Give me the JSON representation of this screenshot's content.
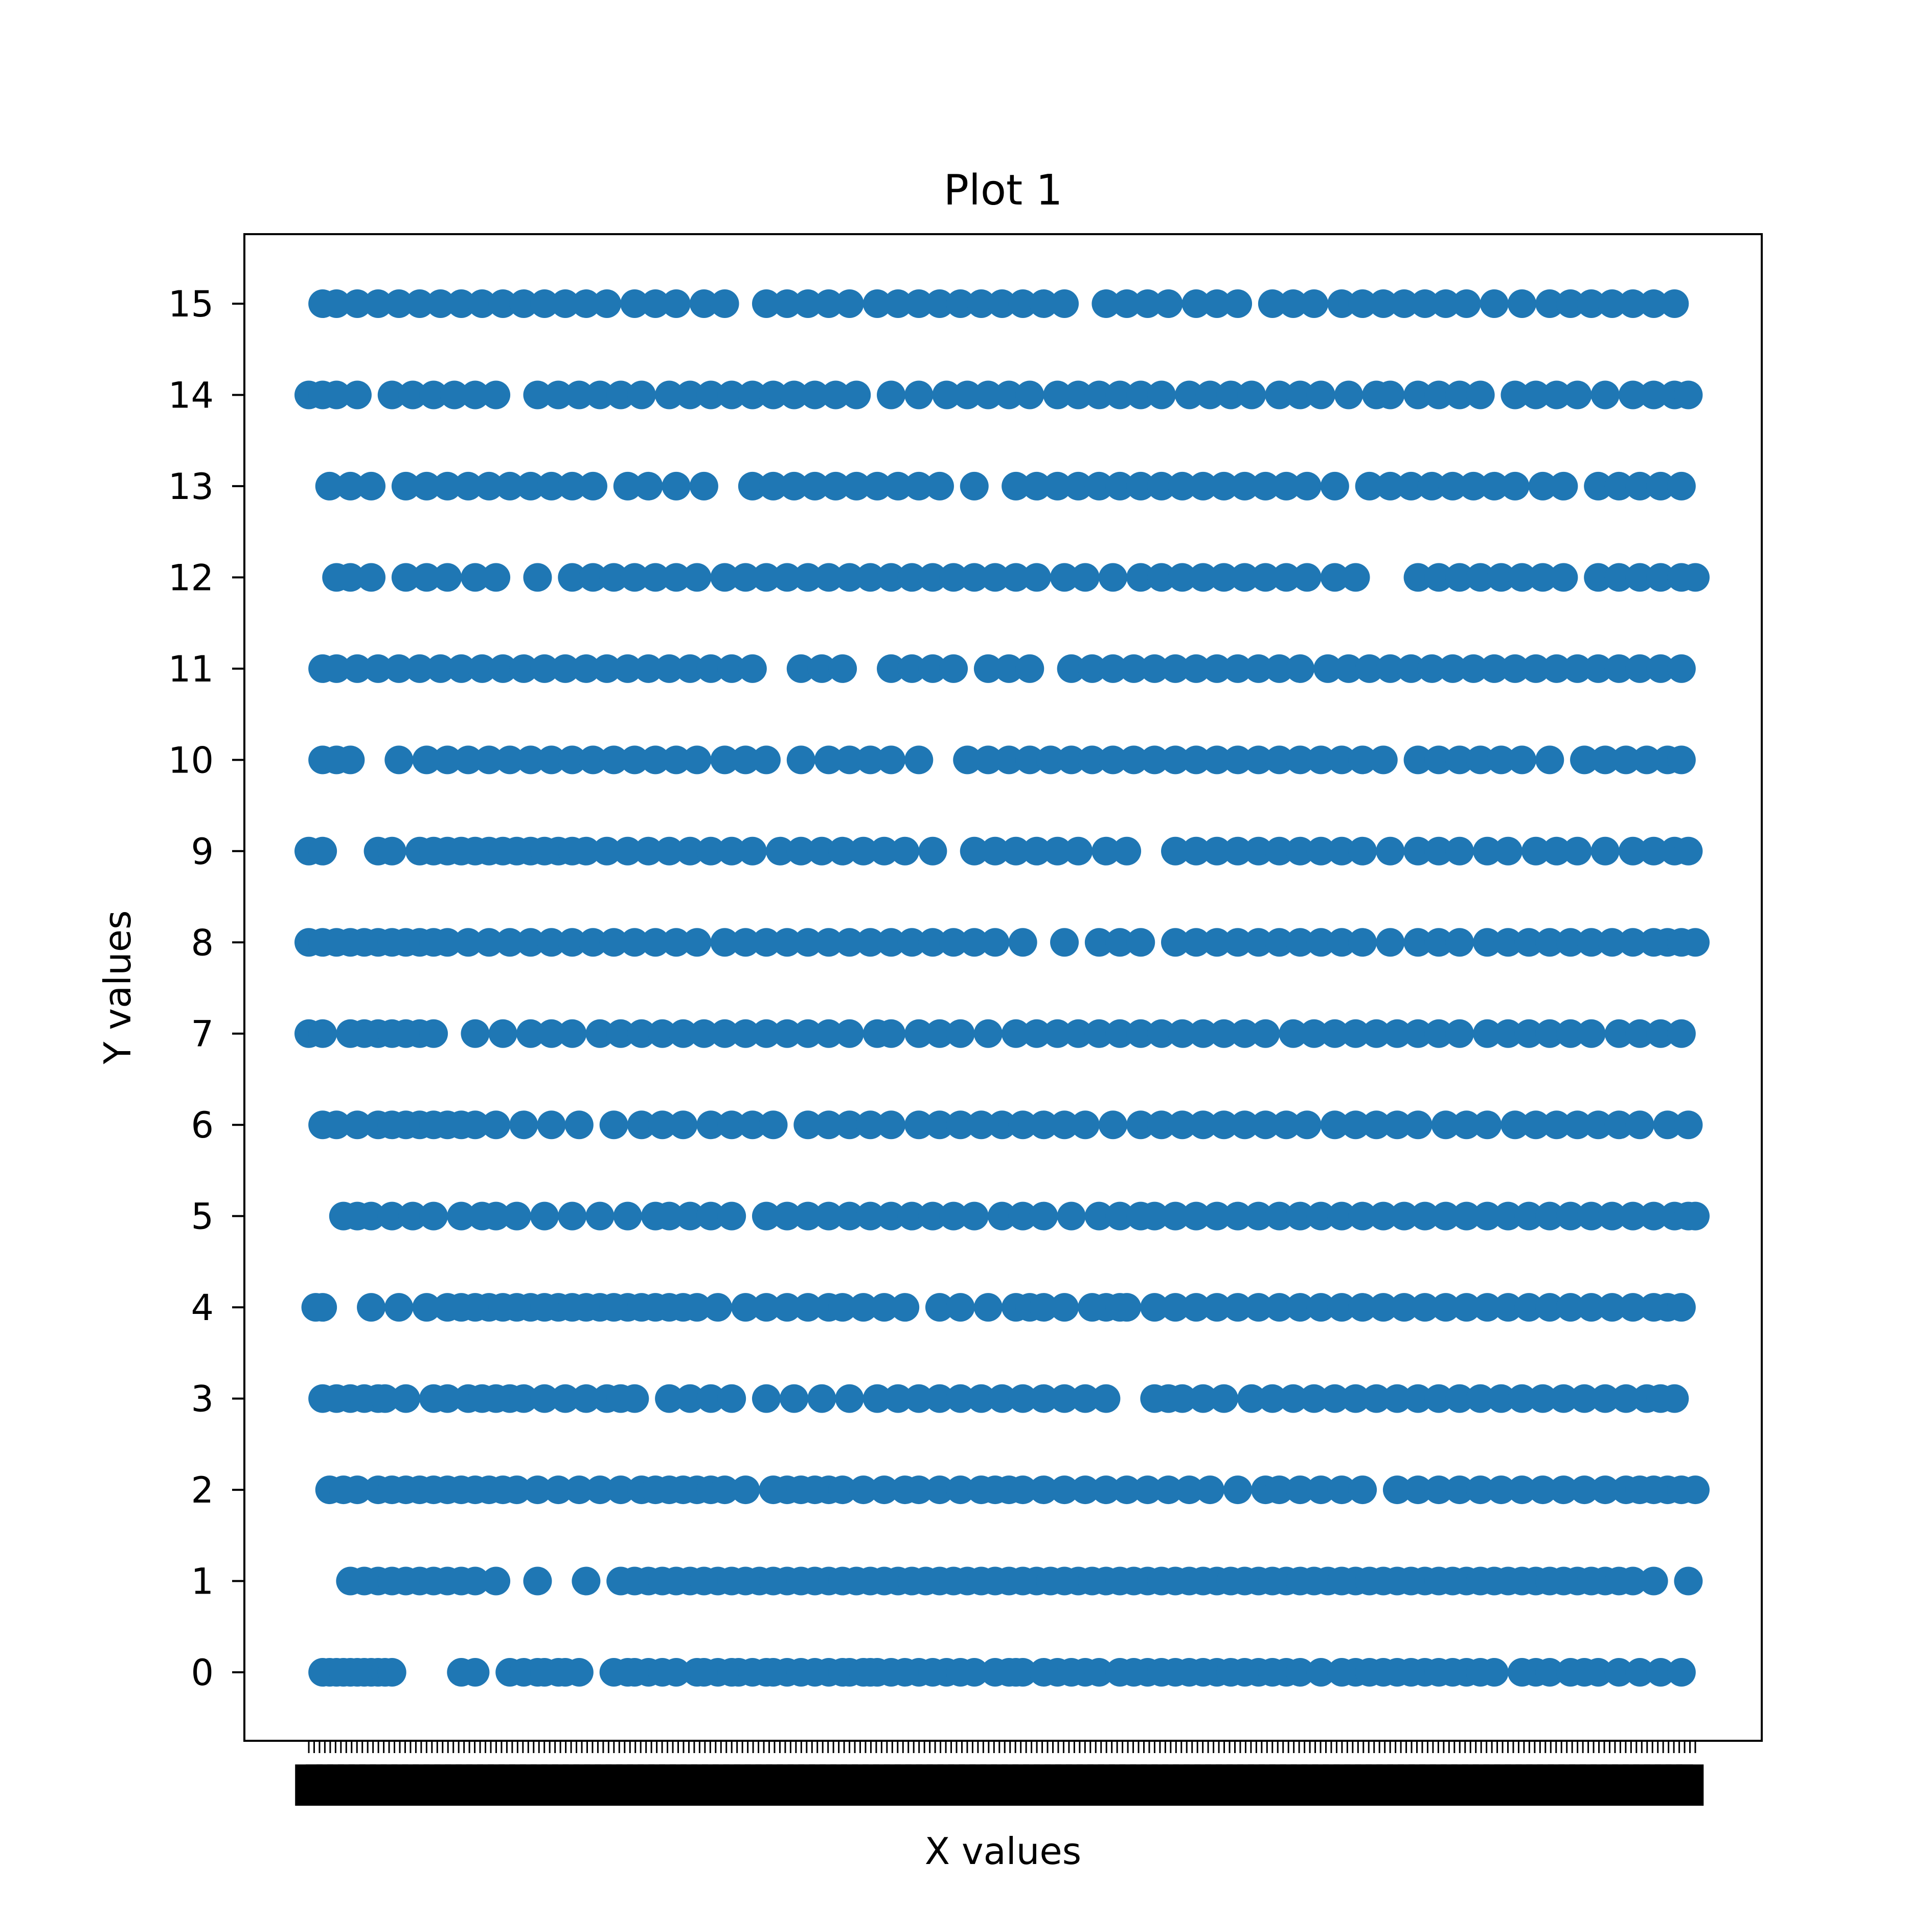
{
  "chart_data": {
    "type": "scatter",
    "title": "Plot 1",
    "xlabel": "X values",
    "ylabel": "Y values",
    "yticks": [
      "0",
      "1",
      "2",
      "3",
      "4",
      "5",
      "6",
      "7",
      "8",
      "9",
      "10",
      "11",
      "12",
      "13",
      "14",
      "15"
    ],
    "xlim": [
      0,
      1
    ],
    "ylim": [
      -0.75,
      15.75
    ],
    "grid": false,
    "x_tick_labels_note": "categorical x tick labels overlap illegibly",
    "marker_color": "#1f77b4",
    "rows": [
      {
        "y": 0,
        "x": [
          0.01,
          0.015,
          0.02,
          0.025,
          0.03,
          0.035,
          0.04,
          0.045,
          0.05,
          0.055,
          0.06,
          0.11,
          0.12,
          0.145,
          0.155,
          0.165,
          0.17,
          0.18,
          0.185,
          0.195,
          0.22,
          0.23,
          0.235,
          0.245,
          0.255,
          0.265,
          0.28,
          0.285,
          0.295,
          0.305,
          0.31,
          0.32,
          0.33,
          0.335,
          0.345,
          0.355,
          0.365,
          0.375,
          0.385,
          0.39,
          0.4,
          0.405,
          0.41,
          0.42,
          0.43,
          0.44,
          0.45,
          0.46,
          0.47,
          0.48,
          0.495,
          0.505,
          0.515,
          0.53,
          0.51,
          0.54,
          0.55,
          0.56,
          0.57,
          0.585,
          0.595,
          0.605,
          0.615,
          0.625,
          0.635,
          0.645,
          0.655,
          0.665,
          0.675,
          0.685,
          0.695,
          0.705,
          0.715,
          0.73,
          0.745,
          0.755,
          0.765,
          0.775,
          0.785,
          0.795,
          0.805,
          0.815,
          0.825,
          0.835,
          0.845,
          0.855,
          0.875,
          0.885,
          0.895,
          0.91,
          0.92,
          0.93,
          0.945,
          0.96,
          0.975,
          0.99
        ]
      },
      {
        "y": 1,
        "x": [
          0.03,
          0.04,
          0.05,
          0.06,
          0.07,
          0.08,
          0.09,
          0.1,
          0.11,
          0.12,
          0.135,
          0.165,
          0.2,
          0.225,
          0.235,
          0.245,
          0.255,
          0.265,
          0.275,
          0.285,
          0.295,
          0.305,
          0.315,
          0.325,
          0.335,
          0.345,
          0.355,
          0.365,
          0.375,
          0.385,
          0.395,
          0.405,
          0.415,
          0.425,
          0.435,
          0.445,
          0.455,
          0.465,
          0.475,
          0.485,
          0.495,
          0.505,
          0.515,
          0.525,
          0.535,
          0.545,
          0.555,
          0.565,
          0.575,
          0.585,
          0.595,
          0.605,
          0.615,
          0.625,
          0.635,
          0.645,
          0.655,
          0.665,
          0.675,
          0.685,
          0.695,
          0.705,
          0.715,
          0.725,
          0.735,
          0.745,
          0.755,
          0.765,
          0.775,
          0.785,
          0.795,
          0.805,
          0.815,
          0.825,
          0.835,
          0.845,
          0.855,
          0.865,
          0.875,
          0.885,
          0.895,
          0.905,
          0.915,
          0.925,
          0.935,
          0.945,
          0.955,
          0.97,
          0.995
        ]
      },
      {
        "y": 2,
        "x": [
          0.015,
          0.025,
          0.035,
          0.05,
          0.06,
          0.07,
          0.08,
          0.09,
          0.1,
          0.11,
          0.12,
          0.13,
          0.14,
          0.15,
          0.165,
          0.18,
          0.195,
          0.21,
          0.225,
          0.24,
          0.25,
          0.26,
          0.27,
          0.28,
          0.29,
          0.3,
          0.315,
          0.335,
          0.345,
          0.355,
          0.365,
          0.375,
          0.385,
          0.4,
          0.415,
          0.43,
          0.44,
          0.455,
          0.47,
          0.485,
          0.495,
          0.505,
          0.515,
          0.53,
          0.545,
          0.56,
          0.575,
          0.59,
          0.605,
          0.62,
          0.635,
          0.65,
          0.67,
          0.69,
          0.7,
          0.715,
          0.73,
          0.745,
          0.76,
          0.785,
          0.8,
          0.815,
          0.83,
          0.845,
          0.86,
          0.875,
          0.89,
          0.905,
          0.92,
          0.935,
          0.95,
          0.96,
          0.97,
          0.98,
          0.99,
          1.0
        ]
      },
      {
        "y": 3,
        "x": [
          0.01,
          0.02,
          0.03,
          0.04,
          0.05,
          0.055,
          0.07,
          0.09,
          0.1,
          0.115,
          0.125,
          0.135,
          0.145,
          0.155,
          0.17,
          0.185,
          0.2,
          0.215,
          0.225,
          0.235,
          0.26,
          0.275,
          0.29,
          0.305,
          0.33,
          0.35,
          0.37,
          0.39,
          0.41,
          0.425,
          0.44,
          0.455,
          0.47,
          0.485,
          0.5,
          0.515,
          0.53,
          0.545,
          0.56,
          0.575,
          0.61,
          0.62,
          0.63,
          0.645,
          0.66,
          0.68,
          0.695,
          0.71,
          0.725,
          0.74,
          0.755,
          0.77,
          0.785,
          0.8,
          0.815,
          0.83,
          0.845,
          0.86,
          0.875,
          0.89,
          0.905,
          0.92,
          0.935,
          0.95,
          0.965,
          0.975,
          0.985
        ]
      },
      {
        "y": 4,
        "x": [
          0.005,
          0.01,
          0.045,
          0.065,
          0.085,
          0.1,
          0.11,
          0.12,
          0.13,
          0.14,
          0.15,
          0.16,
          0.17,
          0.18,
          0.19,
          0.2,
          0.21,
          0.22,
          0.23,
          0.24,
          0.25,
          0.26,
          0.27,
          0.28,
          0.295,
          0.315,
          0.33,
          0.345,
          0.36,
          0.375,
          0.385,
          0.4,
          0.415,
          0.43,
          0.455,
          0.47,
          0.49,
          0.51,
          0.52,
          0.53,
          0.545,
          0.565,
          0.575,
          0.585,
          0.59,
          0.61,
          0.625,
          0.64,
          0.655,
          0.67,
          0.685,
          0.7,
          0.715,
          0.73,
          0.745,
          0.76,
          0.775,
          0.79,
          0.805,
          0.82,
          0.835,
          0.85,
          0.865,
          0.88,
          0.895,
          0.91,
          0.925,
          0.94,
          0.955,
          0.97,
          0.98,
          0.99
        ]
      },
      {
        "y": 5,
        "x": [
          0.025,
          0.035,
          0.045,
          0.06,
          0.075,
          0.09,
          0.11,
          0.125,
          0.135,
          0.15,
          0.17,
          0.19,
          0.21,
          0.23,
          0.25,
          0.26,
          0.275,
          0.29,
          0.305,
          0.33,
          0.345,
          0.36,
          0.375,
          0.39,
          0.405,
          0.42,
          0.435,
          0.45,
          0.465,
          0.48,
          0.5,
          0.515,
          0.53,
          0.55,
          0.57,
          0.585,
          0.6,
          0.61,
          0.625,
          0.64,
          0.655,
          0.67,
          0.685,
          0.7,
          0.715,
          0.73,
          0.745,
          0.76,
          0.775,
          0.79,
          0.805,
          0.82,
          0.835,
          0.85,
          0.865,
          0.88,
          0.895,
          0.91,
          0.925,
          0.94,
          0.955,
          0.97,
          0.985,
          0.995,
          1.0
        ]
      },
      {
        "y": 6,
        "x": [
          0.01,
          0.02,
          0.035,
          0.05,
          0.06,
          0.07,
          0.08,
          0.09,
          0.1,
          0.11,
          0.12,
          0.135,
          0.155,
          0.175,
          0.195,
          0.22,
          0.24,
          0.255,
          0.27,
          0.29,
          0.305,
          0.32,
          0.335,
          0.36,
          0.375,
          0.39,
          0.405,
          0.42,
          0.44,
          0.455,
          0.47,
          0.485,
          0.5,
          0.515,
          0.53,
          0.545,
          0.56,
          0.58,
          0.6,
          0.615,
          0.63,
          0.645,
          0.66,
          0.675,
          0.69,
          0.705,
          0.72,
          0.74,
          0.755,
          0.77,
          0.785,
          0.8,
          0.82,
          0.835,
          0.85,
          0.87,
          0.885,
          0.9,
          0.915,
          0.93,
          0.945,
          0.96,
          0.98,
          0.995
        ]
      },
      {
        "y": 7,
        "x": [
          0.0,
          0.01,
          0.03,
          0.04,
          0.05,
          0.06,
          0.07,
          0.08,
          0.09,
          0.12,
          0.14,
          0.16,
          0.175,
          0.19,
          0.21,
          0.225,
          0.24,
          0.255,
          0.27,
          0.285,
          0.3,
          0.315,
          0.33,
          0.345,
          0.36,
          0.375,
          0.39,
          0.41,
          0.42,
          0.44,
          0.455,
          0.47,
          0.49,
          0.51,
          0.525,
          0.54,
          0.555,
          0.57,
          0.585,
          0.6,
          0.615,
          0.63,
          0.645,
          0.66,
          0.675,
          0.69,
          0.71,
          0.725,
          0.74,
          0.755,
          0.77,
          0.785,
          0.8,
          0.815,
          0.83,
          0.85,
          0.865,
          0.88,
          0.895,
          0.91,
          0.925,
          0.945,
          0.96,
          0.975,
          0.99
        ]
      },
      {
        "y": 8,
        "x": [
          0.0,
          0.01,
          0.02,
          0.03,
          0.04,
          0.05,
          0.06,
          0.07,
          0.08,
          0.09,
          0.1,
          0.115,
          0.13,
          0.145,
          0.16,
          0.175,
          0.19,
          0.205,
          0.22,
          0.235,
          0.25,
          0.265,
          0.28,
          0.3,
          0.315,
          0.33,
          0.345,
          0.36,
          0.375,
          0.39,
          0.405,
          0.42,
          0.435,
          0.45,
          0.465,
          0.48,
          0.495,
          0.515,
          0.545,
          0.57,
          0.585,
          0.6,
          0.625,
          0.64,
          0.655,
          0.67,
          0.685,
          0.7,
          0.715,
          0.73,
          0.745,
          0.76,
          0.78,
          0.8,
          0.815,
          0.83,
          0.85,
          0.865,
          0.88,
          0.895,
          0.91,
          0.925,
          0.94,
          0.955,
          0.97,
          0.98,
          0.99,
          1.0
        ]
      },
      {
        "y": 9,
        "x": [
          0.0,
          0.01,
          0.05,
          0.06,
          0.08,
          0.09,
          0.1,
          0.11,
          0.12,
          0.13,
          0.14,
          0.15,
          0.16,
          0.17,
          0.18,
          0.19,
          0.2,
          0.215,
          0.23,
          0.245,
          0.26,
          0.275,
          0.29,
          0.305,
          0.32,
          0.34,
          0.355,
          0.37,
          0.385,
          0.4,
          0.415,
          0.43,
          0.45,
          0.48,
          0.495,
          0.51,
          0.525,
          0.54,
          0.555,
          0.575,
          0.59,
          0.625,
          0.64,
          0.655,
          0.67,
          0.685,
          0.7,
          0.715,
          0.73,
          0.745,
          0.76,
          0.78,
          0.8,
          0.815,
          0.83,
          0.85,
          0.865,
          0.885,
          0.9,
          0.915,
          0.935,
          0.955,
          0.97,
          0.985,
          0.995
        ]
      },
      {
        "y": 10,
        "x": [
          0.01,
          0.02,
          0.03,
          0.065,
          0.085,
          0.1,
          0.115,
          0.13,
          0.145,
          0.16,
          0.175,
          0.19,
          0.205,
          0.22,
          0.235,
          0.25,
          0.265,
          0.28,
          0.3,
          0.315,
          0.33,
          0.355,
          0.375,
          0.39,
          0.405,
          0.42,
          0.44,
          0.475,
          0.49,
          0.505,
          0.52,
          0.535,
          0.55,
          0.565,
          0.58,
          0.595,
          0.61,
          0.625,
          0.64,
          0.655,
          0.67,
          0.685,
          0.7,
          0.715,
          0.73,
          0.745,
          0.76,
          0.775,
          0.8,
          0.815,
          0.83,
          0.845,
          0.86,
          0.875,
          0.895,
          0.92,
          0.935,
          0.95,
          0.965,
          0.98,
          0.99
        ]
      },
      {
        "y": 11,
        "x": [
          0.01,
          0.02,
          0.035,
          0.05,
          0.065,
          0.08,
          0.095,
          0.11,
          0.125,
          0.14,
          0.155,
          0.17,
          0.185,
          0.2,
          0.215,
          0.23,
          0.245,
          0.26,
          0.275,
          0.29,
          0.305,
          0.32,
          0.355,
          0.37,
          0.385,
          0.42,
          0.435,
          0.45,
          0.465,
          0.49,
          0.505,
          0.52,
          0.55,
          0.565,
          0.58,
          0.595,
          0.61,
          0.625,
          0.64,
          0.655,
          0.67,
          0.685,
          0.7,
          0.715,
          0.735,
          0.75,
          0.765,
          0.78,
          0.795,
          0.81,
          0.825,
          0.84,
          0.855,
          0.87,
          0.885,
          0.9,
          0.915,
          0.93,
          0.945,
          0.96,
          0.975,
          0.99
        ]
      },
      {
        "y": 12,
        "x": [
          0.02,
          0.03,
          0.045,
          0.07,
          0.085,
          0.1,
          0.12,
          0.135,
          0.165,
          0.19,
          0.205,
          0.22,
          0.235,
          0.25,
          0.265,
          0.28,
          0.3,
          0.315,
          0.33,
          0.345,
          0.36,
          0.375,
          0.39,
          0.405,
          0.42,
          0.435,
          0.45,
          0.465,
          0.48,
          0.495,
          0.51,
          0.525,
          0.545,
          0.56,
          0.58,
          0.6,
          0.615,
          0.63,
          0.645,
          0.66,
          0.675,
          0.69,
          0.705,
          0.72,
          0.74,
          0.755,
          0.8,
          0.815,
          0.83,
          0.845,
          0.86,
          0.875,
          0.89,
          0.905,
          0.93,
          0.945,
          0.96,
          0.975,
          0.99,
          1.0
        ]
      },
      {
        "y": 13,
        "x": [
          0.015,
          0.03,
          0.045,
          0.07,
          0.085,
          0.1,
          0.115,
          0.13,
          0.145,
          0.16,
          0.175,
          0.19,
          0.205,
          0.23,
          0.245,
          0.265,
          0.285,
          0.32,
          0.335,
          0.35,
          0.365,
          0.38,
          0.395,
          0.41,
          0.425,
          0.44,
          0.455,
          0.48,
          0.51,
          0.525,
          0.54,
          0.555,
          0.57,
          0.585,
          0.6,
          0.615,
          0.63,
          0.645,
          0.66,
          0.675,
          0.69,
          0.705,
          0.72,
          0.74,
          0.765,
          0.78,
          0.795,
          0.81,
          0.825,
          0.84,
          0.855,
          0.87,
          0.89,
          0.905,
          0.93,
          0.945,
          0.96,
          0.975,
          0.99
        ]
      },
      {
        "y": 14,
        "x": [
          0.0,
          0.01,
          0.02,
          0.035,
          0.06,
          0.075,
          0.09,
          0.105,
          0.12,
          0.135,
          0.165,
          0.18,
          0.195,
          0.21,
          0.225,
          0.24,
          0.26,
          0.275,
          0.29,
          0.305,
          0.32,
          0.335,
          0.35,
          0.365,
          0.38,
          0.395,
          0.42,
          0.44,
          0.46,
          0.475,
          0.49,
          0.505,
          0.52,
          0.54,
          0.555,
          0.57,
          0.585,
          0.6,
          0.615,
          0.635,
          0.65,
          0.665,
          0.68,
          0.7,
          0.715,
          0.73,
          0.75,
          0.77,
          0.78,
          0.8,
          0.815,
          0.83,
          0.845,
          0.87,
          0.885,
          0.9,
          0.915,
          0.935,
          0.955,
          0.97,
          0.985,
          0.995
        ]
      },
      {
        "y": 15,
        "x": [
          0.01,
          0.02,
          0.035,
          0.05,
          0.065,
          0.08,
          0.095,
          0.11,
          0.125,
          0.14,
          0.155,
          0.17,
          0.185,
          0.2,
          0.215,
          0.235,
          0.25,
          0.265,
          0.285,
          0.3,
          0.33,
          0.345,
          0.36,
          0.375,
          0.39,
          0.41,
          0.425,
          0.44,
          0.455,
          0.47,
          0.485,
          0.5,
          0.515,
          0.53,
          0.545,
          0.575,
          0.59,
          0.605,
          0.62,
          0.64,
          0.655,
          0.67,
          0.695,
          0.71,
          0.725,
          0.745,
          0.76,
          0.775,
          0.79,
          0.805,
          0.82,
          0.835,
          0.855,
          0.875,
          0.895,
          0.91,
          0.925,
          0.94,
          0.955,
          0.97,
          0.985
        ]
      }
    ]
  }
}
